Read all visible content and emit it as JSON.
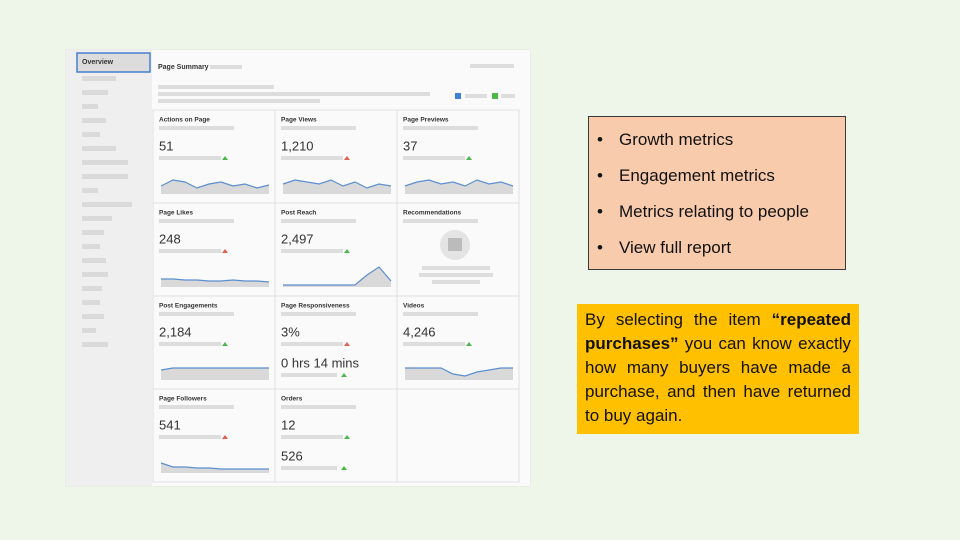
{
  "sidebar": {
    "active_item": "Overview"
  },
  "header": {
    "title": "Page Summary"
  },
  "tiles": [
    {
      "title": "Actions on Page",
      "value": "51"
    },
    {
      "title": "Page Views",
      "value": "1,210"
    },
    {
      "title": "Page Previews",
      "value": "37"
    },
    {
      "title": "Page Likes",
      "value": "248"
    },
    {
      "title": "Post Reach",
      "value": "2,497"
    },
    {
      "title": "Recommendations"
    },
    {
      "title": "Post Engagements",
      "value": "2,184"
    },
    {
      "title": "Page Responsiveness",
      "value": "3%",
      "secondary_value": "0 hrs 14 mins"
    },
    {
      "title": "Videos",
      "value": "4,246"
    },
    {
      "title": "Page Followers",
      "value": "541"
    },
    {
      "title": "Orders",
      "value": "12",
      "secondary_value": "526"
    }
  ],
  "bullets": [
    "Growth metrics",
    "Engagement metrics",
    "Metrics relating to people",
    "View full report"
  ],
  "note": {
    "parts": [
      "By selecting the item ",
      "“repeated purchases”",
      " you can know exactly how many buyers have made a purchase, and then have returned to buy again."
    ]
  }
}
